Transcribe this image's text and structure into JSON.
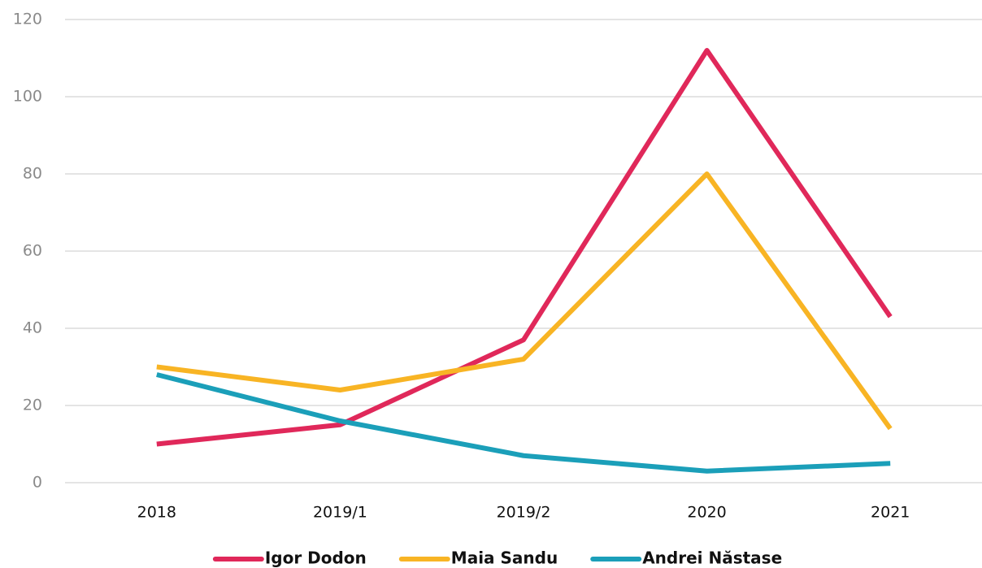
{
  "chart_data": {
    "type": "line",
    "categories": [
      "2018",
      "2019/1",
      "2019/2",
      "2020",
      "2021"
    ],
    "series": [
      {
        "name": "Igor Dodon",
        "color": "#e0285a",
        "values": [
          10,
          15,
          37,
          112,
          43
        ]
      },
      {
        "name": "Maia Sandu",
        "color": "#f8b424",
        "values": [
          30,
          24,
          32,
          80,
          14
        ]
      },
      {
        "name": "Andrei Năstase",
        "color": "#1b9fb9",
        "values": [
          28,
          16,
          7,
          3,
          5
        ]
      }
    ],
    "ylim": [
      0,
      120
    ],
    "yticks": [
      0,
      20,
      40,
      60,
      80,
      100,
      120
    ],
    "grid": true,
    "legend": "bottom"
  }
}
